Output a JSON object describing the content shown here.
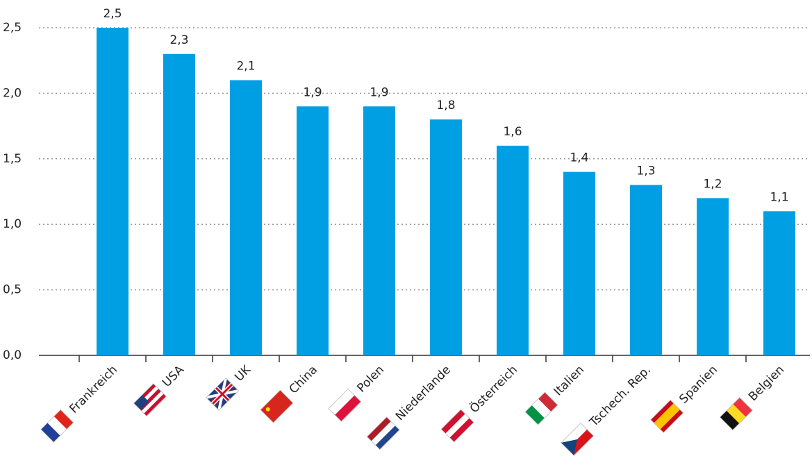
{
  "chart_data": {
    "type": "bar",
    "categories": [
      "Frankreich",
      "USA",
      "UK",
      "China",
      "Polen",
      "Niederlande",
      "Österreich",
      "Italien",
      "Tschech. Rep.",
      "Spanien",
      "Belgien"
    ],
    "values": [
      2.5,
      2.3,
      2.1,
      1.9,
      1.9,
      1.8,
      1.6,
      1.4,
      1.3,
      1.2,
      1.1
    ],
    "value_labels": [
      "2,5",
      "2,3",
      "2,1",
      "1,9",
      "1,9",
      "1,8",
      "1,6",
      "1,4",
      "1,3",
      "1,2",
      "1,1"
    ],
    "color": "#009fe3",
    "ylim": [
      0,
      2.5
    ],
    "yticks": [
      {
        "value": 0,
        "label": "0,0"
      },
      {
        "value": 0.5,
        "label": "0,5"
      },
      {
        "value": 1,
        "label": "1,0"
      },
      {
        "value": 1.5,
        "label": "1,5"
      },
      {
        "value": 2,
        "label": "2,0"
      },
      {
        "value": 2.5,
        "label": "2,5"
      }
    ],
    "grid": true
  }
}
